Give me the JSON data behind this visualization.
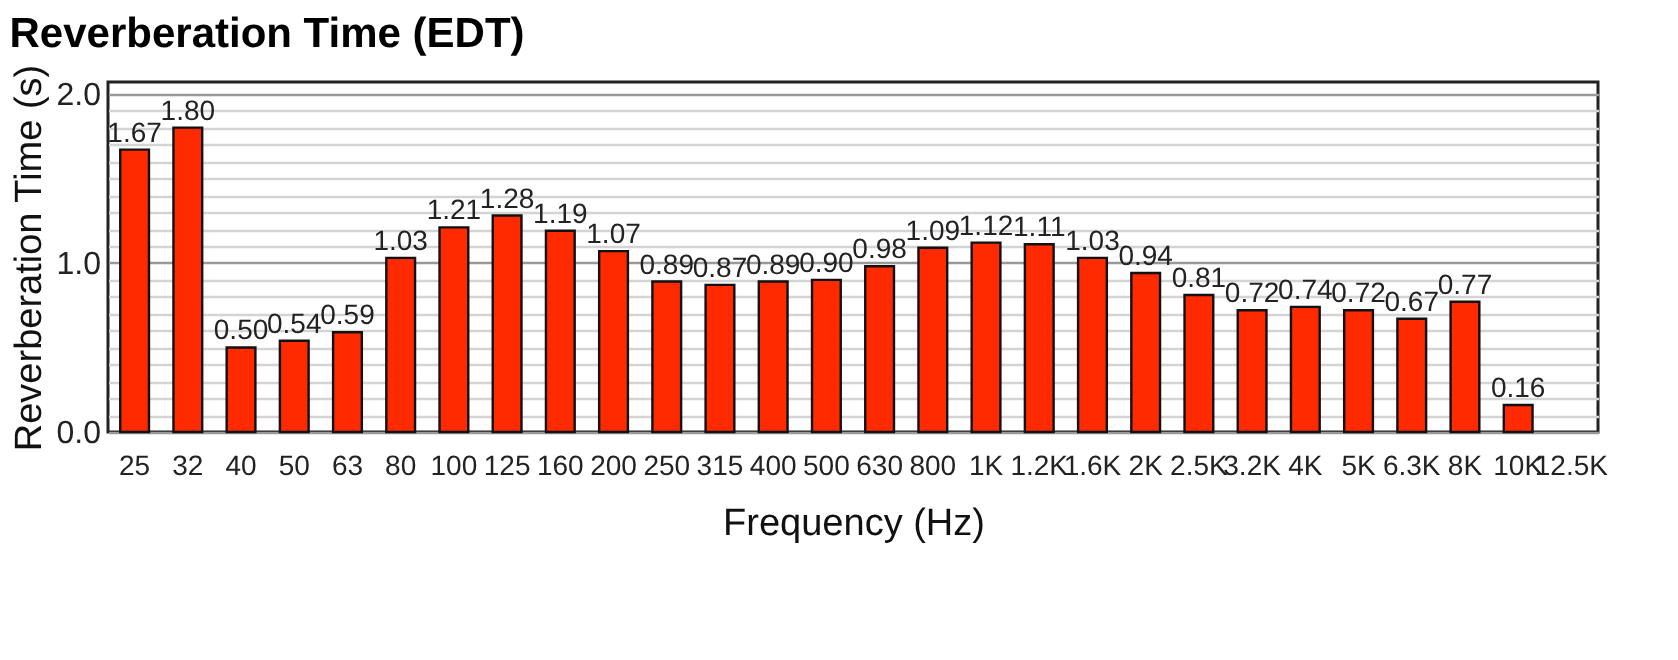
{
  "chart_data": {
    "type": "bar",
    "title": "Reverberation Time (EDT)",
    "xlabel": "Frequency (Hz)",
    "ylabel": "Reverberation Time (s)",
    "categories": [
      "25",
      "32",
      "40",
      "50",
      "63",
      "80",
      "100",
      "125",
      "160",
      "200",
      "250",
      "315",
      "400",
      "500",
      "630",
      "800",
      "1K",
      "1.2K",
      "1.6K",
      "2K",
      "2.5K",
      "3.2K",
      "4K",
      "5K",
      "6.3K",
      "8K",
      "10K",
      "12.5K"
    ],
    "values": [
      1.67,
      1.8,
      0.5,
      0.54,
      0.59,
      1.03,
      1.21,
      1.28,
      1.19,
      1.07,
      0.89,
      0.87,
      0.89,
      0.9,
      0.98,
      1.09,
      1.12,
      1.11,
      1.03,
      0.94,
      0.81,
      0.72,
      0.74,
      0.72,
      0.67,
      0.77,
      0.16,
      null
    ],
    "value_labels": [
      "1.67",
      "1.80",
      "0.50",
      "0.54",
      "0.59",
      "1.03",
      "1.21",
      "1.28",
      "1.19",
      "1.07",
      "0.89",
      "0.87",
      "0.89",
      "0.90",
      "0.98",
      "1.09",
      "1.12",
      "1.11",
      "1.03",
      "0.94",
      "0.81",
      "0.72",
      "0.74",
      "0.72",
      "0.67",
      "0.77",
      "0.16",
      null
    ],
    "color": "#ff2a00",
    "ylim": [
      0,
      2.07
    ],
    "yticks": [
      {
        "value": 0,
        "label": "0.0"
      },
      {
        "value": 0.1,
        "label": null
      },
      {
        "value": 0.2,
        "label": null
      },
      {
        "value": 0.3,
        "label": null
      },
      {
        "value": 0.4,
        "label": null
      },
      {
        "value": 0.5,
        "label": null
      },
      {
        "value": 0.6,
        "label": null
      },
      {
        "value": 0.7,
        "label": null
      },
      {
        "value": 0.8,
        "label": null
      },
      {
        "value": 0.9,
        "label": null
      },
      {
        "value": 1,
        "label": "1.0"
      },
      {
        "value": 1.1,
        "label": null
      },
      {
        "value": 1.2,
        "label": null
      },
      {
        "value": 1.3,
        "label": null
      },
      {
        "value": 1.4,
        "label": null
      },
      {
        "value": 1.5,
        "label": null
      },
      {
        "value": 1.6,
        "label": null
      },
      {
        "value": 1.7,
        "label": null
      },
      {
        "value": 1.8,
        "label": null
      },
      {
        "value": 1.9,
        "label": null
      },
      {
        "value": 2,
        "label": "2.0"
      }
    ],
    "grid": true
  }
}
